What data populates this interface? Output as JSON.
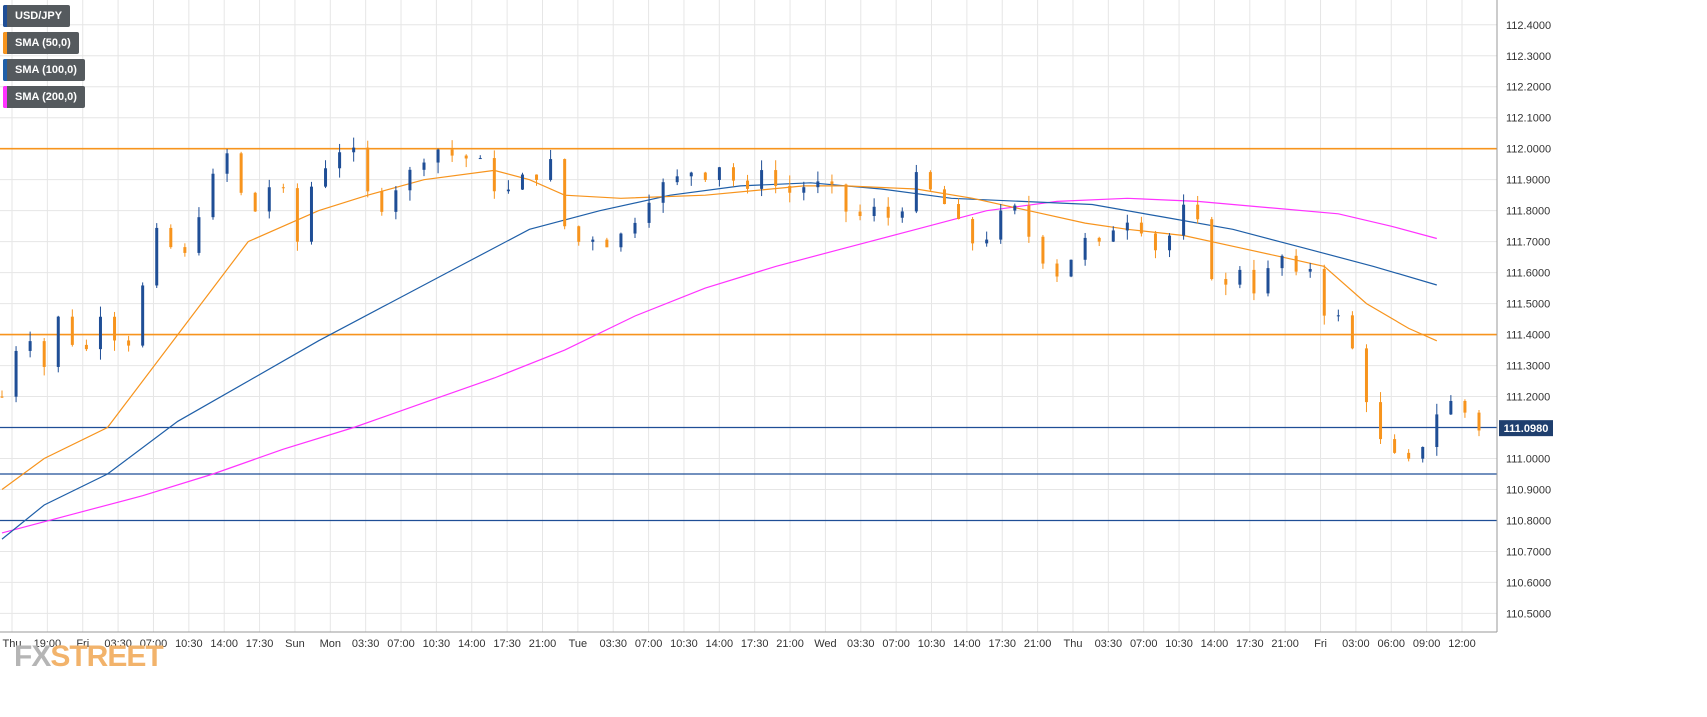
{
  "legend": [
    {
      "label": "USD/JPY",
      "color": "#1f4e96"
    },
    {
      "label": "SMA (50,0)",
      "color": "#f7941d"
    },
    {
      "label": "SMA (100,0)",
      "color": "#1f5fa8"
    },
    {
      "label": "SMA (200,0)",
      "color": "#ff33ff"
    }
  ],
  "logo": {
    "fx": "FX",
    "street": "STREET"
  },
  "colors": {
    "bull": "#1f4e96",
    "bear": "#f7941d",
    "sma50": "#f7941d",
    "sma100": "#1f5fa8",
    "sma200": "#ff33ff",
    "level_orange": "#f7941d",
    "level_blue": "#1f4e96",
    "grid": "#e6e6e6",
    "axis_text": "#333333"
  },
  "chart_data": {
    "type": "candlestick",
    "symbol": "USD/JPY",
    "grid": true,
    "ylim": [
      110.44,
      112.48
    ],
    "y_ticks": [
      "112.4000",
      "112.3000",
      "112.2000",
      "112.1000",
      "112.0000",
      "111.9000",
      "111.8000",
      "111.7000",
      "111.6000",
      "111.5000",
      "111.4000",
      "111.3000",
      "111.2000",
      "111.1000",
      "111.0000",
      "110.9000",
      "110.8000",
      "110.7000",
      "110.6000",
      "110.5000"
    ],
    "x_ticks": [
      "Thu",
      "19:00",
      "Fri",
      "03:30",
      "07:00",
      "10:30",
      "14:00",
      "17:30",
      "Sun",
      "Mon",
      "03:30",
      "07:00",
      "10:30",
      "14:00",
      "17:30",
      "21:00",
      "Tue",
      "03:30",
      "07:00",
      "10:30",
      "14:00",
      "17:30",
      "21:00",
      "Wed",
      "03:30",
      "07:00",
      "10:30",
      "14:00",
      "17:30",
      "21:00",
      "Thu",
      "03:30",
      "07:00",
      "10:30",
      "14:00",
      "17:30",
      "21:00",
      "Fri",
      "03:00",
      "06:00",
      "09:00",
      "12:00"
    ],
    "current_price": "111.0980",
    "horizontal_levels": [
      {
        "value": 112.0,
        "color": "orange"
      },
      {
        "value": 111.4,
        "color": "orange"
      },
      {
        "value": 111.1,
        "color": "blue"
      },
      {
        "value": 110.95,
        "color": "blue"
      },
      {
        "value": 110.8,
        "color": "blue"
      }
    ],
    "close_path": [
      [
        0,
        111.2
      ],
      [
        3,
        111.35
      ],
      [
        8,
        111.4
      ],
      [
        12,
        111.3
      ],
      [
        16,
        111.45
      ],
      [
        20,
        111.38
      ],
      [
        24,
        111.35
      ],
      [
        28,
        111.48
      ],
      [
        32,
        111.4
      ],
      [
        36,
        111.38
      ],
      [
        40,
        111.55
      ],
      [
        44,
        111.72
      ],
      [
        48,
        111.68
      ],
      [
        52,
        111.65
      ],
      [
        56,
        111.8
      ],
      [
        60,
        111.9
      ],
      [
        64,
        111.98
      ],
      [
        68,
        111.85
      ],
      [
        72,
        111.8
      ],
      [
        76,
        111.88
      ],
      [
        80,
        111.85
      ],
      [
        84,
        111.7
      ],
      [
        88,
        111.88
      ],
      [
        92,
        111.95
      ],
      [
        96,
        112.0
      ],
      [
        100,
        111.98
      ],
      [
        104,
        111.85
      ],
      [
        108,
        111.82
      ],
      [
        112,
        111.88
      ],
      [
        116,
        111.92
      ],
      [
        120,
        111.98
      ],
      [
        124,
        112.0
      ],
      [
        128,
        111.98
      ],
      [
        132,
        111.97
      ],
      [
        136,
        111.95
      ],
      [
        140,
        111.88
      ],
      [
        144,
        111.86
      ],
      [
        148,
        111.9
      ],
      [
        152,
        111.92
      ],
      [
        156,
        111.95
      ],
      [
        160,
        111.75
      ],
      [
        164,
        111.7
      ],
      [
        168,
        111.72
      ],
      [
        172,
        111.7
      ],
      [
        176,
        111.72
      ],
      [
        180,
        111.78
      ],
      [
        184,
        111.85
      ],
      [
        188,
        111.88
      ],
      [
        192,
        111.9
      ],
      [
        196,
        111.93
      ],
      [
        200,
        111.92
      ],
      [
        204,
        111.95
      ],
      [
        208,
        111.9
      ],
      [
        212,
        111.85
      ],
      [
        216,
        111.95
      ],
      [
        220,
        111.88
      ],
      [
        224,
        111.86
      ],
      [
        228,
        111.88
      ],
      [
        232,
        111.88
      ],
      [
        236,
        111.86
      ],
      [
        240,
        111.8
      ],
      [
        244,
        111.78
      ],
      [
        248,
        111.8
      ],
      [
        252,
        111.78
      ],
      [
        256,
        111.82
      ],
      [
        260,
        111.9
      ],
      [
        264,
        111.86
      ],
      [
        268,
        111.82
      ],
      [
        272,
        111.75
      ],
      [
        276,
        111.7
      ],
      [
        280,
        111.72
      ],
      [
        284,
        111.78
      ],
      [
        288,
        111.8
      ],
      [
        292,
        111.72
      ],
      [
        296,
        111.65
      ],
      [
        300,
        111.6
      ],
      [
        304,
        111.65
      ],
      [
        308,
        111.7
      ],
      [
        312,
        111.68
      ],
      [
        316,
        111.75
      ],
      [
        320,
        111.78
      ],
      [
        324,
        111.75
      ],
      [
        328,
        111.68
      ],
      [
        332,
        111.72
      ],
      [
        336,
        111.8
      ],
      [
        340,
        111.75
      ],
      [
        344,
        111.6
      ],
      [
        348,
        111.55
      ],
      [
        352,
        111.62
      ],
      [
        356,
        111.55
      ],
      [
        360,
        111.6
      ],
      [
        364,
        111.65
      ],
      [
        368,
        111.58
      ],
      [
        372,
        111.62
      ],
      [
        376,
        111.48
      ],
      [
        380,
        111.45
      ],
      [
        384,
        111.35
      ],
      [
        388,
        111.2
      ],
      [
        392,
        111.05
      ],
      [
        396,
        111.0
      ],
      [
        400,
        110.98
      ],
      [
        404,
        111.05
      ],
      [
        408,
        111.15
      ],
      [
        412,
        111.18
      ],
      [
        416,
        111.15
      ],
      [
        420,
        111.1
      ]
    ],
    "sma50": [
      [
        0,
        110.9
      ],
      [
        12,
        111.0
      ],
      [
        30,
        111.1
      ],
      [
        50,
        111.4
      ],
      [
        70,
        111.7
      ],
      [
        90,
        111.8
      ],
      [
        104,
        111.85
      ],
      [
        120,
        111.9
      ],
      [
        140,
        111.93
      ],
      [
        150,
        111.9
      ],
      [
        160,
        111.85
      ],
      [
        176,
        111.84
      ],
      [
        200,
        111.85
      ],
      [
        228,
        111.88
      ],
      [
        240,
        111.88
      ],
      [
        260,
        111.87
      ],
      [
        276,
        111.84
      ],
      [
        292,
        111.8
      ],
      [
        308,
        111.76
      ],
      [
        320,
        111.74
      ],
      [
        336,
        111.72
      ],
      [
        352,
        111.68
      ],
      [
        364,
        111.65
      ],
      [
        376,
        111.62
      ],
      [
        388,
        111.5
      ],
      [
        400,
        111.42
      ],
      [
        408,
        111.38
      ]
    ],
    "sma100": [
      [
        0,
        110.74
      ],
      [
        12,
        110.85
      ],
      [
        30,
        110.95
      ],
      [
        50,
        111.12
      ],
      [
        70,
        111.25
      ],
      [
        90,
        111.38
      ],
      [
        110,
        111.5
      ],
      [
        130,
        111.62
      ],
      [
        150,
        111.74
      ],
      [
        170,
        111.8
      ],
      [
        190,
        111.85
      ],
      [
        210,
        111.88
      ],
      [
        230,
        111.89
      ],
      [
        250,
        111.87
      ],
      [
        270,
        111.84
      ],
      [
        290,
        111.83
      ],
      [
        310,
        111.82
      ],
      [
        330,
        111.78
      ],
      [
        350,
        111.74
      ],
      [
        370,
        111.68
      ],
      [
        390,
        111.62
      ],
      [
        408,
        111.56
      ]
    ],
    "sma200": [
      [
        0,
        110.76
      ],
      [
        20,
        110.82
      ],
      [
        40,
        110.88
      ],
      [
        60,
        110.95
      ],
      [
        80,
        111.03
      ],
      [
        100,
        111.1
      ],
      [
        120,
        111.18
      ],
      [
        140,
        111.26
      ],
      [
        160,
        111.35
      ],
      [
        180,
        111.46
      ],
      [
        200,
        111.55
      ],
      [
        220,
        111.62
      ],
      [
        240,
        111.68
      ],
      [
        260,
        111.74
      ],
      [
        280,
        111.8
      ],
      [
        300,
        111.83
      ],
      [
        320,
        111.84
      ],
      [
        340,
        111.83
      ],
      [
        360,
        111.81
      ],
      [
        380,
        111.79
      ],
      [
        395,
        111.75
      ],
      [
        408,
        111.71
      ]
    ]
  }
}
